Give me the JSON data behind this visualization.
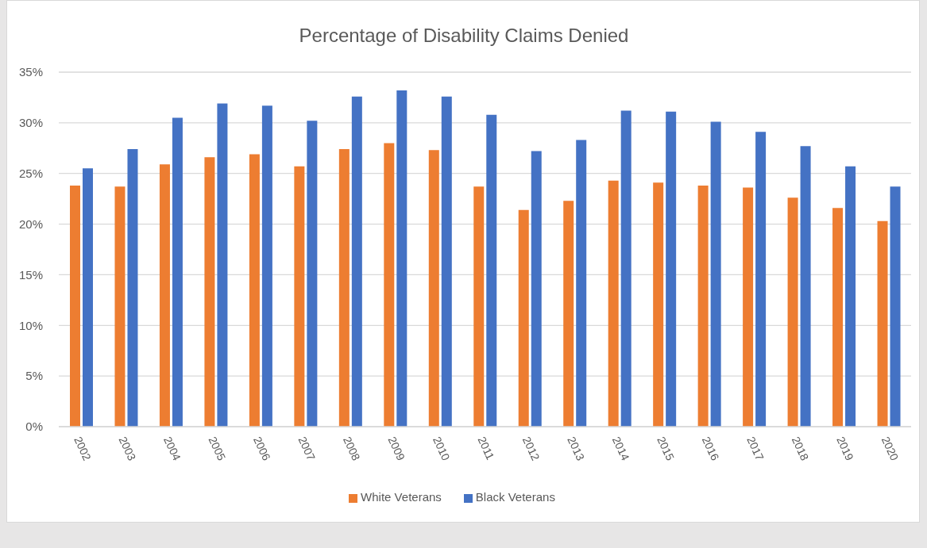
{
  "chart_data": {
    "type": "bar",
    "title": "Percentage of Disability Claims Denied",
    "categories": [
      "2002",
      "2003",
      "2004",
      "2005",
      "2006",
      "2007",
      "2008",
      "2009",
      "2010",
      "2011",
      "2012",
      "2013",
      "2014",
      "2015",
      "2016",
      "2017",
      "2018",
      "2019",
      "2020"
    ],
    "series": [
      {
        "name": "White Veterans",
        "color": "#ed7d31",
        "values": [
          23.8,
          23.7,
          25.9,
          26.6,
          26.9,
          25.7,
          27.4,
          28.0,
          27.3,
          23.7,
          21.4,
          22.3,
          24.3,
          24.1,
          23.8,
          23.6,
          22.6,
          21.6,
          20.3
        ]
      },
      {
        "name": "Black Veterans",
        "color": "#4472c4",
        "values": [
          25.5,
          27.4,
          30.5,
          31.9,
          31.7,
          30.2,
          32.6,
          33.2,
          32.6,
          30.8,
          27.2,
          28.3,
          31.2,
          31.1,
          30.1,
          29.1,
          27.7,
          25.7,
          23.7
        ]
      }
    ],
    "ylim": [
      0,
      35
    ],
    "yticks": [
      {
        "value": 0,
        "label": "0%"
      },
      {
        "value": 5,
        "label": "5%"
      },
      {
        "value": 10,
        "label": "10%"
      },
      {
        "value": 15,
        "label": "15%"
      },
      {
        "value": 20,
        "label": "20%"
      },
      {
        "value": 25,
        "label": "25%"
      },
      {
        "value": 30,
        "label": "30%"
      },
      {
        "value": 35,
        "label": "35%"
      }
    ],
    "grid": "y",
    "legend": "bottom"
  }
}
